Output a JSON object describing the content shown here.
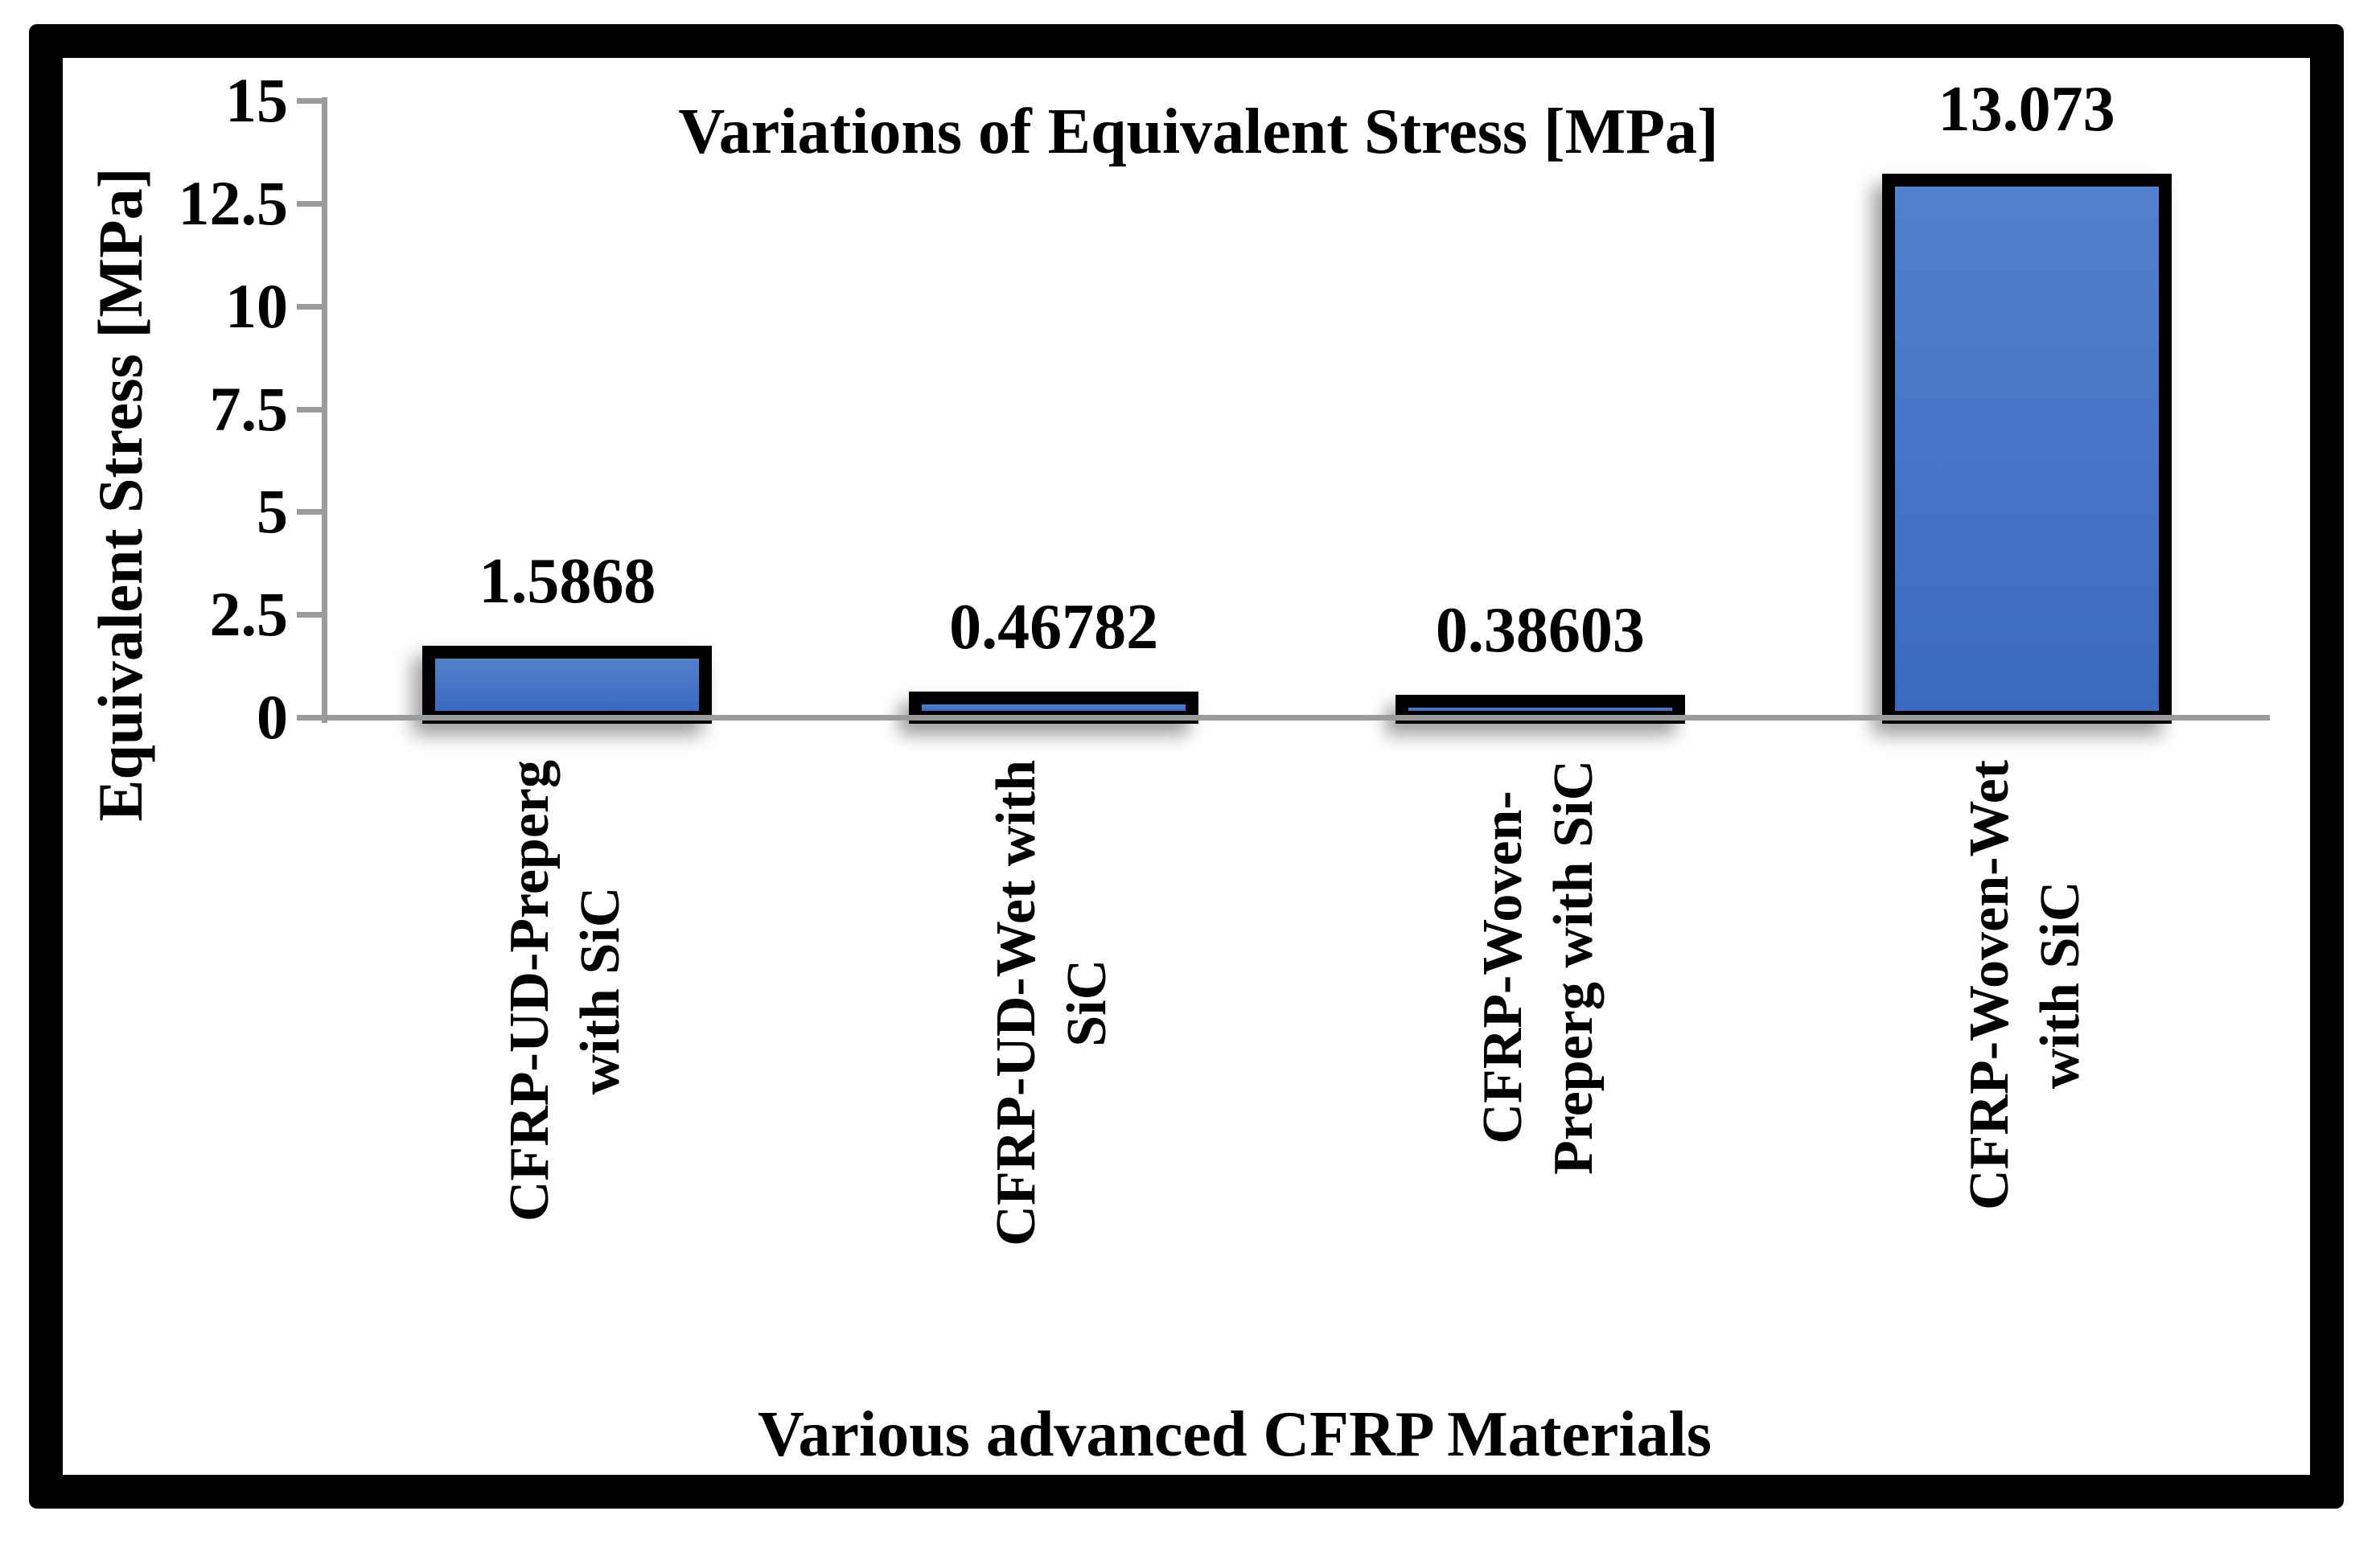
{
  "chart_data": {
    "type": "bar",
    "title": "Variations of Equivalent Stress [MPa]",
    "xlabel": "Various advanced CFRP Materials",
    "ylabel": "Equivalent Stress [MPa]",
    "categories": [
      "CFRP-UD-Preperg with SiC",
      "CFRP-UD-Wet with SiC",
      "CFRP-Woven-Preperg with SiC",
      "CFRP-Woven-Wet with SiC"
    ],
    "category_lines": [
      [
        "CFRP-UD-Preperg",
        "with SiC"
      ],
      [
        "CFRP-UD-Wet with",
        "SiC"
      ],
      [
        "CFRP-Woven-",
        "Preperg with SiC"
      ],
      [
        "CFRP-Woven-Wet",
        "with SiC"
      ]
    ],
    "values": [
      1.5868,
      0.46782,
      0.38603,
      13.073
    ],
    "value_labels": [
      "1.5868",
      "0.46782",
      "0.38603",
      "13.073"
    ],
    "ylim": [
      0,
      15
    ],
    "ytick_labels": [
      "0",
      "2.5",
      "5",
      "7.5",
      "10",
      "12.5",
      "15"
    ],
    "grid": false,
    "legend_position": "none",
    "colors": {
      "bar_fill_top": "#5280ce",
      "bar_fill_bottom": "#3a6ac0",
      "bar_border": "#000000",
      "axis_line": "#9b9b9b",
      "text": "#000000",
      "frame_border": "#000000",
      "background": "#ffffff"
    }
  }
}
